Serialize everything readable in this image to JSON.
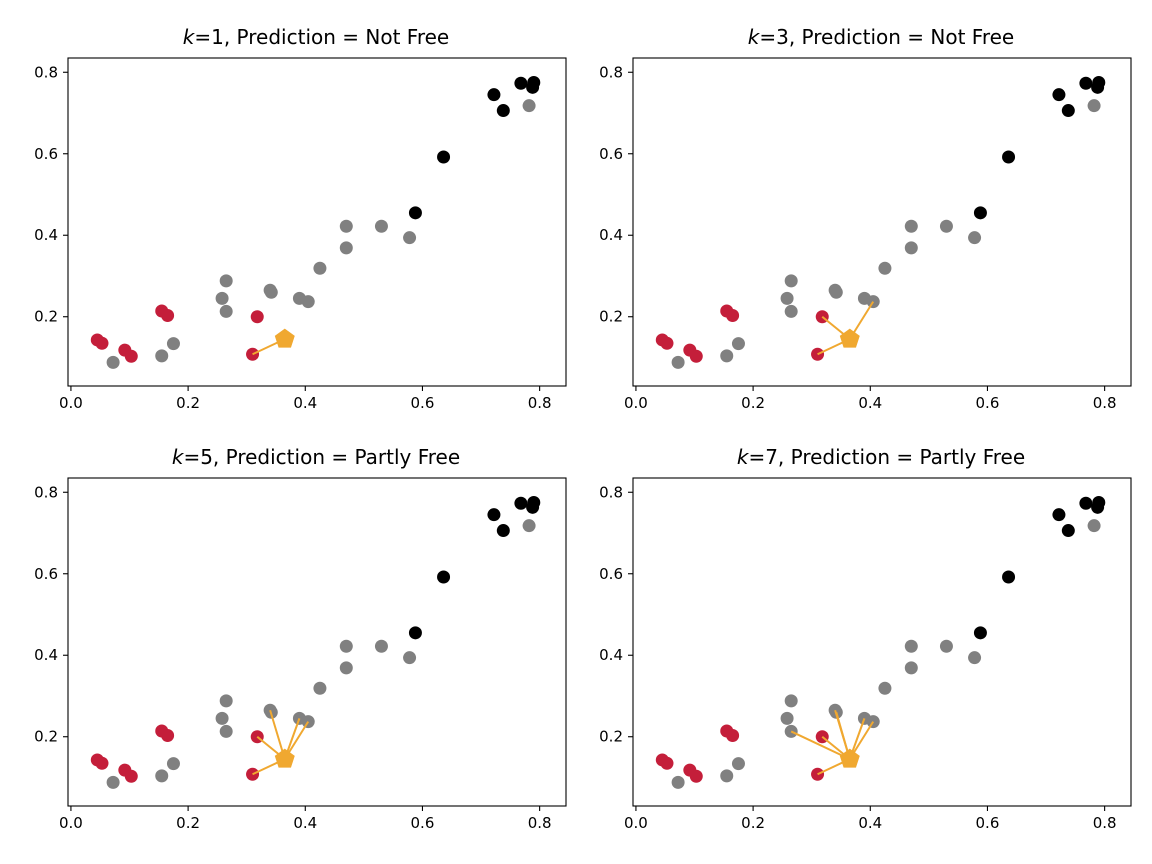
{
  "chart_data": [
    {
      "type": "scatter",
      "k_label": "k",
      "title_rest": "=1, Prediction = Not Free",
      "xlim": [
        -0.005,
        0.845
      ],
      "ylim": [
        0.03,
        0.835
      ],
      "xticks": [
        "0.0",
        "0.2",
        "0.4",
        "0.6",
        "0.8"
      ],
      "yticks": [
        "0.2",
        "0.4",
        "0.6",
        "0.8"
      ],
      "query_point": {
        "x": 0.365,
        "y": 0.145
      },
      "neighbors": [
        [
          0.31,
          0.108
        ]
      ]
    },
    {
      "type": "scatter",
      "k_label": "k",
      "title_rest": "=3, Prediction = Not Free",
      "xlim": [
        -0.005,
        0.845
      ],
      "ylim": [
        0.03,
        0.835
      ],
      "xticks": [
        "0.0",
        "0.2",
        "0.4",
        "0.6",
        "0.8"
      ],
      "yticks": [
        "0.2",
        "0.4",
        "0.6",
        "0.8"
      ],
      "query_point": {
        "x": 0.365,
        "y": 0.145
      },
      "neighbors": [
        [
          0.31,
          0.108
        ],
        [
          0.318,
          0.2
        ],
        [
          0.405,
          0.237
        ]
      ]
    },
    {
      "type": "scatter",
      "k_label": "k",
      "title_rest": "=5, Prediction = Partly Free",
      "xlim": [
        -0.005,
        0.845
      ],
      "ylim": [
        0.03,
        0.835
      ],
      "xticks": [
        "0.0",
        "0.2",
        "0.4",
        "0.6",
        "0.8"
      ],
      "yticks": [
        "0.2",
        "0.4",
        "0.6",
        "0.8"
      ],
      "query_point": {
        "x": 0.365,
        "y": 0.145
      },
      "neighbors": [
        [
          0.31,
          0.108
        ],
        [
          0.318,
          0.2
        ],
        [
          0.405,
          0.237
        ],
        [
          0.39,
          0.245
        ],
        [
          0.34,
          0.265
        ]
      ]
    },
    {
      "type": "scatter",
      "k_label": "k",
      "title_rest": "=7, Prediction = Partly Free",
      "xlim": [
        -0.005,
        0.845
      ],
      "ylim": [
        0.03,
        0.835
      ],
      "xticks": [
        "0.0",
        "0.2",
        "0.4",
        "0.6",
        "0.8"
      ],
      "yticks": [
        "0.2",
        "0.4",
        "0.6",
        "0.8"
      ],
      "query_point": {
        "x": 0.365,
        "y": 0.145
      },
      "neighbors": [
        [
          0.31,
          0.108
        ],
        [
          0.318,
          0.2
        ],
        [
          0.405,
          0.237
        ],
        [
          0.39,
          0.245
        ],
        [
          0.34,
          0.265
        ],
        [
          0.265,
          0.213
        ],
        [
          0.342,
          0.26
        ]
      ]
    }
  ],
  "points": [
    {
      "x": 0.045,
      "y": 0.143,
      "c": "red"
    },
    {
      "x": 0.053,
      "y": 0.135,
      "c": "red"
    },
    {
      "x": 0.092,
      "y": 0.118,
      "c": "red"
    },
    {
      "x": 0.103,
      "y": 0.103,
      "c": "red"
    },
    {
      "x": 0.155,
      "y": 0.214,
      "c": "red"
    },
    {
      "x": 0.165,
      "y": 0.203,
      "c": "red"
    },
    {
      "x": 0.318,
      "y": 0.2,
      "c": "red"
    },
    {
      "x": 0.31,
      "y": 0.108,
      "c": "red"
    },
    {
      "x": 0.072,
      "y": 0.088,
      "c": "gray"
    },
    {
      "x": 0.155,
      "y": 0.104,
      "c": "gray"
    },
    {
      "x": 0.175,
      "y": 0.134,
      "c": "gray"
    },
    {
      "x": 0.258,
      "y": 0.245,
      "c": "gray"
    },
    {
      "x": 0.265,
      "y": 0.213,
      "c": "gray"
    },
    {
      "x": 0.265,
      "y": 0.288,
      "c": "gray"
    },
    {
      "x": 0.34,
      "y": 0.265,
      "c": "gray"
    },
    {
      "x": 0.342,
      "y": 0.26,
      "c": "gray"
    },
    {
      "x": 0.39,
      "y": 0.245,
      "c": "gray"
    },
    {
      "x": 0.405,
      "y": 0.237,
      "c": "gray"
    },
    {
      "x": 0.425,
      "y": 0.319,
      "c": "gray"
    },
    {
      "x": 0.47,
      "y": 0.369,
      "c": "gray"
    },
    {
      "x": 0.47,
      "y": 0.422,
      "c": "gray"
    },
    {
      "x": 0.53,
      "y": 0.422,
      "c": "gray"
    },
    {
      "x": 0.578,
      "y": 0.394,
      "c": "gray"
    },
    {
      "x": 0.782,
      "y": 0.718,
      "c": "gray"
    },
    {
      "x": 0.588,
      "y": 0.455,
      "c": "black"
    },
    {
      "x": 0.636,
      "y": 0.592,
      "c": "black"
    },
    {
      "x": 0.722,
      "y": 0.745,
      "c": "black"
    },
    {
      "x": 0.738,
      "y": 0.706,
      "c": "black"
    },
    {
      "x": 0.768,
      "y": 0.773,
      "c": "black"
    },
    {
      "x": 0.788,
      "y": 0.763,
      "c": "black"
    },
    {
      "x": 0.79,
      "y": 0.775,
      "c": "black"
    }
  ],
  "colors": {
    "red": "#c41e3a",
    "gray": "#808080",
    "black": "#000000",
    "query": "#f0a830",
    "line": "#f0a830"
  }
}
